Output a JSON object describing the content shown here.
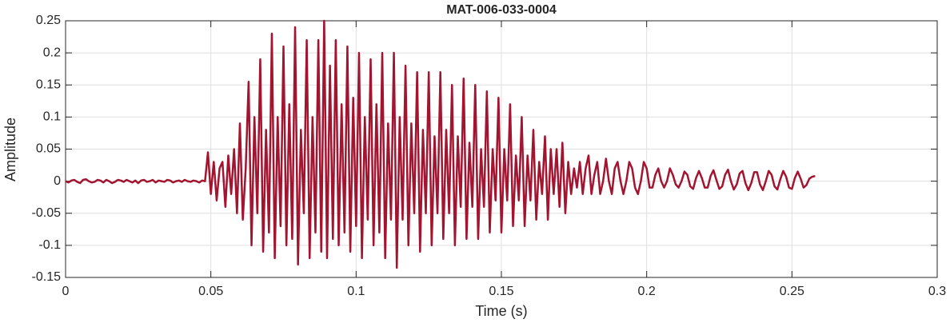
{
  "chart_data": {
    "type": "line",
    "title": "MAT-006-033-0004",
    "xlabel": "Time (s)",
    "ylabel": "Amplitude",
    "color": "#a2142f",
    "grid": true,
    "xlim": [
      0,
      0.3
    ],
    "xticks": [
      0,
      0.05,
      0.1,
      0.15,
      0.2,
      0.25,
      0.3
    ],
    "ylim": [
      -0.15,
      0.25
    ],
    "yticks": [
      -0.15,
      -0.1,
      -0.05,
      0,
      0.05,
      0.1,
      0.15,
      0.2,
      0.25
    ],
    "x": [
      0,
      0.001,
      0.002,
      0.003,
      0.004,
      0.005,
      0.006,
      0.007,
      0.008,
      0.009,
      0.01,
      0.011,
      0.012,
      0.013,
      0.014,
      0.015,
      0.016,
      0.017,
      0.018,
      0.019,
      0.02,
      0.021,
      0.022,
      0.023,
      0.024,
      0.025,
      0.026,
      0.027,
      0.028,
      0.029,
      0.03,
      0.031,
      0.032,
      0.033,
      0.034,
      0.035,
      0.036,
      0.037,
      0.038,
      0.039,
      0.04,
      0.041,
      0.042,
      0.043,
      0.044,
      0.045,
      0.046,
      0.047,
      0.048,
      0.049,
      0.05,
      0.051,
      0.052,
      0.053,
      0.054,
      0.055,
      0.056,
      0.057,
      0.058,
      0.059,
      0.06,
      0.061,
      0.062,
      0.063,
      0.064,
      0.065,
      0.066,
      0.067,
      0.068,
      0.069,
      0.07,
      0.071,
      0.072,
      0.073,
      0.074,
      0.075,
      0.076,
      0.077,
      0.078,
      0.079,
      0.08,
      0.081,
      0.082,
      0.083,
      0.084,
      0.085,
      0.086,
      0.087,
      0.088,
      0.089,
      0.09,
      0.091,
      0.092,
      0.093,
      0.094,
      0.095,
      0.096,
      0.097,
      0.098,
      0.099,
      0.1,
      0.101,
      0.102,
      0.103,
      0.104,
      0.105,
      0.106,
      0.107,
      0.108,
      0.109,
      0.11,
      0.111,
      0.112,
      0.113,
      0.114,
      0.115,
      0.116,
      0.117,
      0.118,
      0.119,
      0.12,
      0.121,
      0.122,
      0.123,
      0.124,
      0.125,
      0.126,
      0.127,
      0.128,
      0.129,
      0.13,
      0.131,
      0.132,
      0.133,
      0.134,
      0.135,
      0.136,
      0.137,
      0.138,
      0.139,
      0.14,
      0.141,
      0.142,
      0.143,
      0.144,
      0.145,
      0.146,
      0.147,
      0.148,
      0.149,
      0.15,
      0.151,
      0.152,
      0.153,
      0.154,
      0.155,
      0.156,
      0.157,
      0.158,
      0.159,
      0.16,
      0.161,
      0.162,
      0.163,
      0.164,
      0.165,
      0.166,
      0.167,
      0.168,
      0.169,
      0.17,
      0.171,
      0.172,
      0.173,
      0.174,
      0.175,
      0.176,
      0.177,
      0.178,
      0.179,
      0.18,
      0.181,
      0.182,
      0.183,
      0.184,
      0.185,
      0.186,
      0.187,
      0.188,
      0.189,
      0.19,
      0.191,
      0.192,
      0.193,
      0.194,
      0.195,
      0.196,
      0.197,
      0.198,
      0.199,
      0.2,
      0.201,
      0.202,
      0.203,
      0.204,
      0.205,
      0.206,
      0.207,
      0.208,
      0.209,
      0.21,
      0.211,
      0.212,
      0.213,
      0.214,
      0.215,
      0.216,
      0.217,
      0.218,
      0.219,
      0.22,
      0.221,
      0.222,
      0.223,
      0.224,
      0.225,
      0.226,
      0.227,
      0.228,
      0.229,
      0.23,
      0.231,
      0.232,
      0.233,
      0.234,
      0.235,
      0.236,
      0.237,
      0.238,
      0.239,
      0.24,
      0.241,
      0.242,
      0.243,
      0.244,
      0.245,
      0.246,
      0.247,
      0.248,
      0.249,
      0.25,
      0.251,
      0.252,
      0.253,
      0.254,
      0.255,
      0.256,
      0.257,
      0.258
    ],
    "values": [
      0,
      -0.002,
      0.001,
      0.002,
      -0.001,
      -0.003,
      0.002,
      0.003,
      0,
      -0.002,
      -0.001,
      0.002,
      0.001,
      -0.002,
      0.002,
      0,
      -0.003,
      -0.001,
      0.002,
      0.001,
      -0.001,
      0.002,
      0,
      -0.002,
      0.001,
      -0.003,
      0.001,
      0.002,
      -0.001,
      0,
      0.002,
      -0.002,
      0.001,
      0,
      -0.001,
      0.002,
      0.001,
      -0.002,
      0,
      0.001,
      -0.001,
      0.002,
      0,
      -0.001,
      0.001,
      0,
      -0.002,
      0.001,
      0,
      0.045,
      -0.02,
      0.03,
      -0.03,
      0.02,
      0.03,
      -0.04,
      0.04,
      -0.02,
      0.05,
      -0.05,
      0.09,
      -0.06,
      0.02,
      0.155,
      -0.1,
      0.1,
      -0.05,
      0.19,
      -0.11,
      0.08,
      -0.08,
      0.23,
      -0.12,
      0.1,
      -0.07,
      0.21,
      -0.1,
      0.12,
      -0.09,
      0.24,
      -0.13,
      0.08,
      -0.05,
      0.22,
      -0.12,
      0.1,
      -0.08,
      0.22,
      -0.11,
      0.25,
      -0.12,
      0.18,
      -0.09,
      0.22,
      -0.1,
      0.12,
      -0.08,
      0.21,
      -0.11,
      0.13,
      -0.07,
      0.2,
      -0.12,
      0.1,
      -0.06,
      0.19,
      -0.1,
      0.12,
      -0.08,
      0.2,
      -0.12,
      0.09,
      -0.06,
      0.2,
      -0.135,
      0.1,
      -0.06,
      0.18,
      -0.1,
      0.09,
      -0.05,
      0.17,
      -0.11,
      0.08,
      -0.05,
      0.17,
      -0.1,
      0.07,
      -0.05,
      0.17,
      -0.09,
      0.08,
      -0.05,
      0.15,
      -0.1,
      0.07,
      -0.04,
      0.16,
      -0.09,
      0.06,
      -0.04,
      0.15,
      -0.09,
      0.05,
      -0.04,
      0.14,
      -0.08,
      0.05,
      -0.03,
      0.13,
      -0.08,
      0.05,
      -0.03,
      0.12,
      -0.07,
      0.04,
      -0.03,
      0.1,
      -0.07,
      0.04,
      -0.03,
      0.08,
      -0.06,
      0.03,
      -0.02,
      0.07,
      -0.06,
      0.05,
      -0.02,
      0.05,
      -0.04,
      0.06,
      -0.05,
      0.03,
      -0.02,
      0.02,
      -0.01,
      0.03,
      -0.02,
      0.02,
      0.04,
      -0.02,
      0.01,
      0.03,
      -0.02,
      0,
      0.035,
      0,
      -0.02,
      0.02,
      0.03,
      0,
      -0.02,
      0,
      0.03,
      0.02,
      -0.01,
      -0.02,
      0,
      0.03,
      0.02,
      -0.01,
      -0.01,
      0.01,
      0.02,
      0,
      -0.01,
      0,
      0.02,
      0.01,
      -0.005,
      -0.01,
      0,
      0.015,
      0.01,
      -0.008,
      -0.012,
      0.005,
      0.016,
      0.005,
      -0.01,
      -0.01,
      0.008,
      0.017,
      0.002,
      -0.012,
      -0.008,
      0.01,
      0.018,
      0,
      -0.013,
      -0.005,
      0.012,
      0.016,
      -0.003,
      -0.014,
      -0.003,
      0.014,
      0.014,
      -0.005,
      -0.014,
      0,
      0.016,
      0.01,
      -0.008,
      -0.013,
      0.003,
      0.016,
      0.007,
      -0.01,
      -0.012,
      0.005,
      0.015,
      0.004,
      -0.01,
      -0.006,
      0.004,
      0.007,
      0.008
    ]
  }
}
